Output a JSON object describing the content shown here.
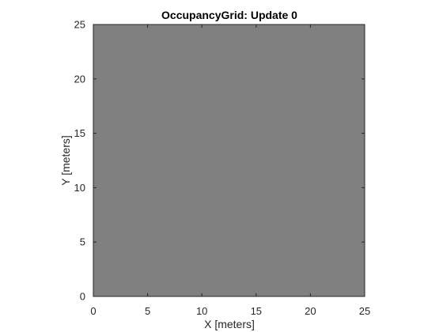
{
  "chart_data": {
    "type": "heatmap",
    "title": "OccupancyGrid: Update 0",
    "xlabel": "X [meters]",
    "ylabel": "Y [meters]",
    "xlim": [
      0,
      25
    ],
    "ylim": [
      0,
      25
    ],
    "xticks": [
      0,
      5,
      10,
      15,
      20,
      25
    ],
    "yticks": [
      0,
      5,
      10,
      15,
      20,
      25
    ],
    "grid": false,
    "legend": "none",
    "occupancy_value": 0.5,
    "cell_color": "#808080",
    "axis_color": "#262626"
  }
}
